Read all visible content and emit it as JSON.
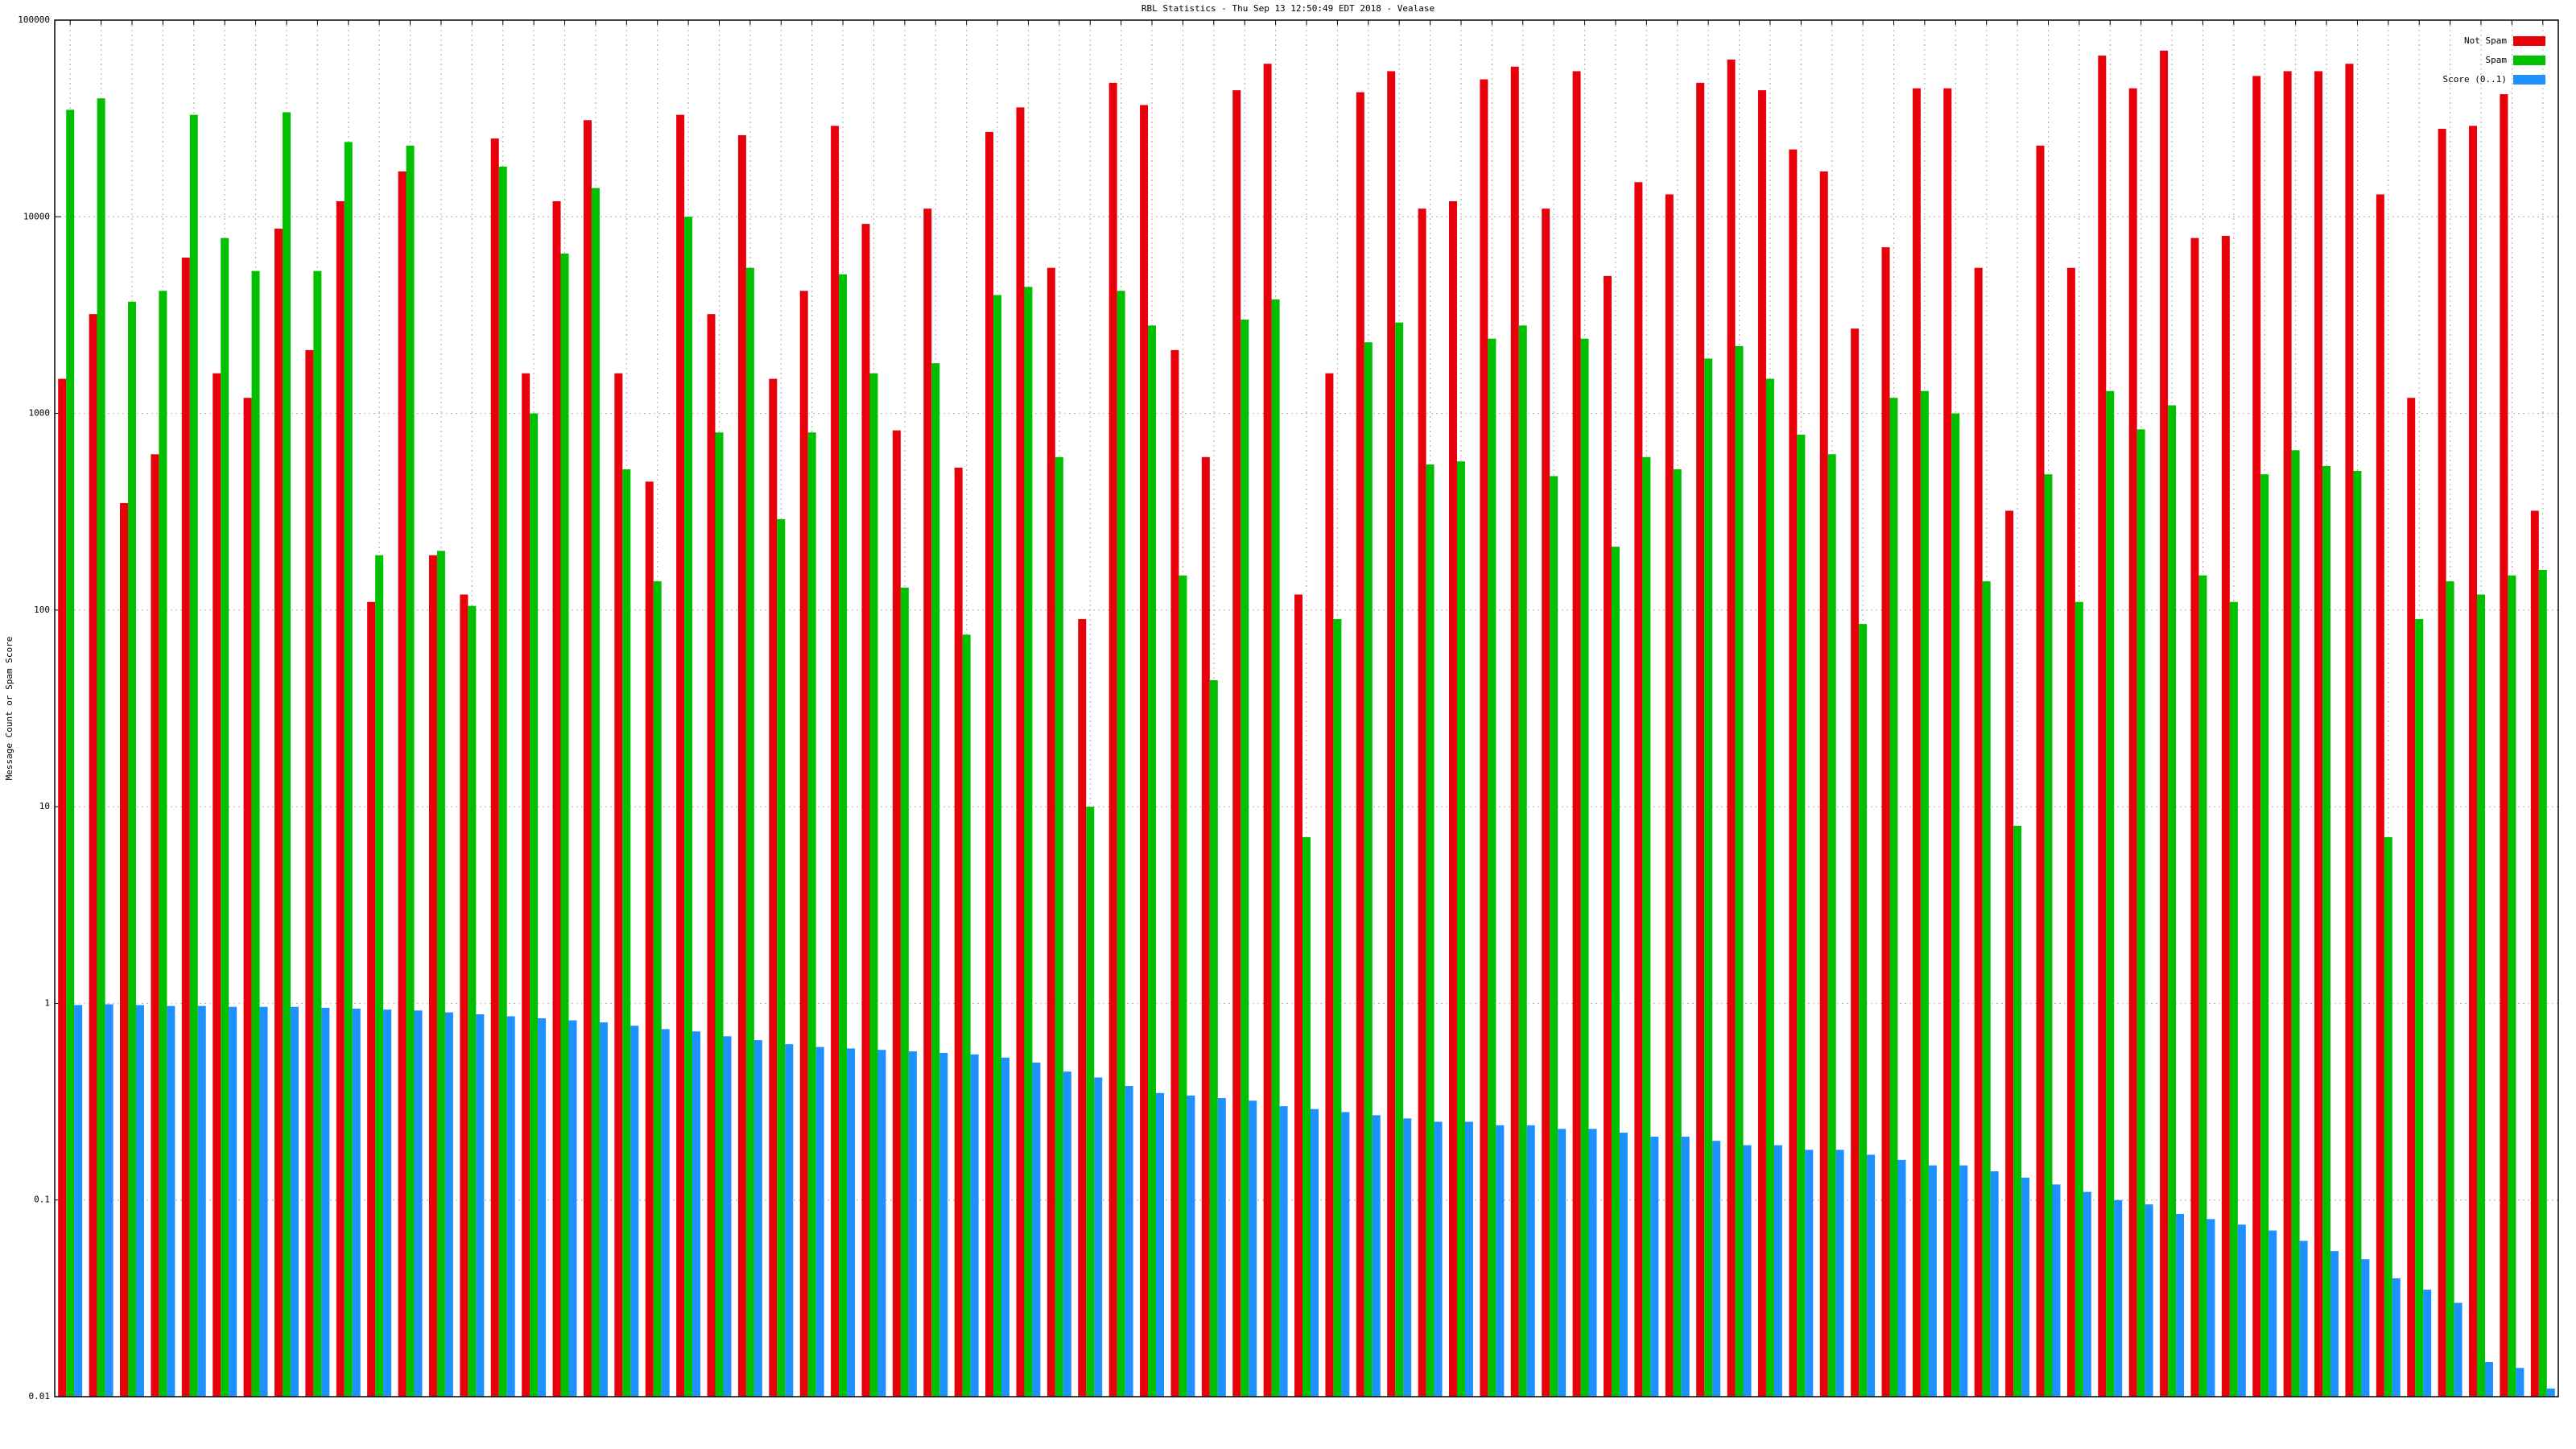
{
  "chart_data": {
    "type": "bar",
    "title": "RBL Statistics - Thu Sep 13 12:50:49 EDT 2018 - Vealase",
    "y_label": "Message Count or Spam Score",
    "log_scale": true,
    "grid": true,
    "legend_position": "top-right",
    "ylim": [
      0.01,
      100000
    ],
    "yticks": [
      0.01,
      0.1,
      1,
      10,
      100,
      1000,
      10000,
      100000
    ],
    "categories": [
      null,
      null,
      null,
      null,
      null,
      null,
      null,
      null,
      null,
      null,
      null,
      null,
      null,
      null,
      null,
      null,
      null,
      null,
      null,
      null,
      null,
      null,
      null,
      null,
      null,
      null,
      null,
      null,
      null,
      null,
      null,
      null,
      null,
      null,
      null,
      null,
      null,
      null,
      null,
      null,
      null,
      null,
      null,
      null,
      null,
      null,
      null,
      null,
      null,
      null,
      null,
      null,
      null,
      null,
      null,
      null,
      null,
      null,
      null,
      null,
      null,
      null,
      null,
      null,
      null,
      null,
      null,
      null,
      null,
      null,
      null,
      null,
      null,
      null,
      null,
      null,
      null,
      null,
      null,
      null,
      null
    ],
    "series": [
      {
        "name": "Not Spam",
        "color": "#e8000b",
        "values": [
          1500,
          3200,
          350,
          620,
          6200,
          1600,
          1200,
          8700,
          2100,
          12000,
          110,
          17000,
          190,
          120,
          25000,
          1600,
          12000,
          31000,
          1600,
          450,
          33000,
          3200,
          26000,
          1500,
          4200,
          29000,
          9200,
          820,
          11000,
          530,
          27000,
          36000,
          5500,
          90,
          48000,
          37000,
          2100,
          600,
          44000,
          60000,
          120,
          1600,
          43000,
          55000,
          11000,
          12000,
          50000,
          58000,
          11000,
          55000,
          5000,
          15000,
          13000,
          48000,
          63000,
          44000,
          22000,
          17000,
          2700,
          7000,
          45000,
          45000,
          5500,
          320,
          23000,
          5500,
          66000,
          45000,
          70000,
          7800,
          8000,
          52000,
          55000,
          55000,
          60000,
          13000,
          1200,
          28000,
          29000,
          42000,
          320
        ]
      },
      {
        "name": "Spam",
        "color": "#00c000",
        "values": [
          35000,
          40000,
          3700,
          4200,
          33000,
          7800,
          5300,
          34000,
          5300,
          24000,
          190,
          23000,
          200,
          105,
          18000,
          1000,
          6500,
          14000,
          520,
          140,
          10000,
          800,
          5500,
          290,
          800,
          5100,
          1600,
          130,
          1800,
          75,
          4000,
          4400,
          600,
          10,
          4200,
          2800,
          150,
          44,
          3000,
          3800,
          7,
          90,
          2300,
          2900,
          550,
          570,
          2400,
          2800,
          480,
          2400,
          210,
          600,
          520,
          1900,
          2200,
          1500,
          780,
          620,
          85,
          1200,
          1300,
          1000,
          140,
          8,
          490,
          110,
          1300,
          830,
          1100,
          150,
          110,
          490,
          650,
          540,
          510,
          7,
          90,
          140,
          120,
          150,
          160
        ]
      },
      {
        "name": "Score (0..1)",
        "color": "#1e90ff",
        "values": [
          0.98,
          0.99,
          0.98,
          0.97,
          0.97,
          0.96,
          0.96,
          0.96,
          0.95,
          0.94,
          0.93,
          0.92,
          0.9,
          0.88,
          0.86,
          0.84,
          0.82,
          0.8,
          0.77,
          0.74,
          0.72,
          0.68,
          0.65,
          0.62,
          0.6,
          0.59,
          0.58,
          0.57,
          0.56,
          0.55,
          0.53,
          0.5,
          0.45,
          0.42,
          0.38,
          0.35,
          0.34,
          0.33,
          0.32,
          0.3,
          0.29,
          0.28,
          0.27,
          0.26,
          0.25,
          0.25,
          0.24,
          0.24,
          0.23,
          0.23,
          0.22,
          0.21,
          0.21,
          0.2,
          0.19,
          0.19,
          0.18,
          0.18,
          0.17,
          0.16,
          0.15,
          0.15,
          0.14,
          0.13,
          0.12,
          0.11,
          0.1,
          0.095,
          0.085,
          0.08,
          0.075,
          0.07,
          0.062,
          0.055,
          0.05,
          0.04,
          0.035,
          0.03,
          0.015,
          0.014,
          0.011
        ]
      }
    ]
  }
}
